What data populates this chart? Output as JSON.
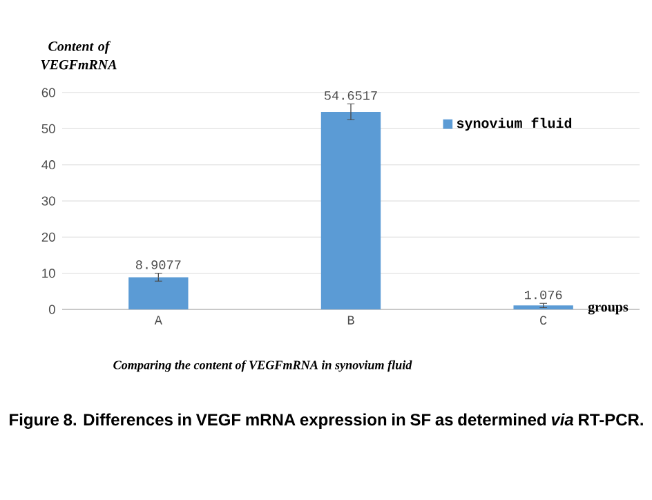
{
  "chart_data": {
    "type": "bar",
    "ylabel": "Content of VEGFmRNA",
    "xlabel": "groups",
    "categories": [
      "A",
      "B",
      "C"
    ],
    "series": [
      {
        "name": "synovium fluid",
        "color": "#5b9bd5",
        "values": [
          8.9077,
          54.6517,
          1.076
        ],
        "errors": [
          1.1,
          2.2,
          0.6
        ]
      }
    ],
    "data_labels": true,
    "ylim": [
      0,
      60
    ],
    "yticks": [
      0,
      10,
      20,
      30,
      40,
      50,
      60
    ],
    "grid": "y",
    "legend": "top right",
    "annotations": [
      "Comparing the content of VEGFmRNA in  synovium fluid",
      "Figure 8. Differences in VEGF mRNA expression in SF as determined *via* RT-PCR."
    ]
  }
}
